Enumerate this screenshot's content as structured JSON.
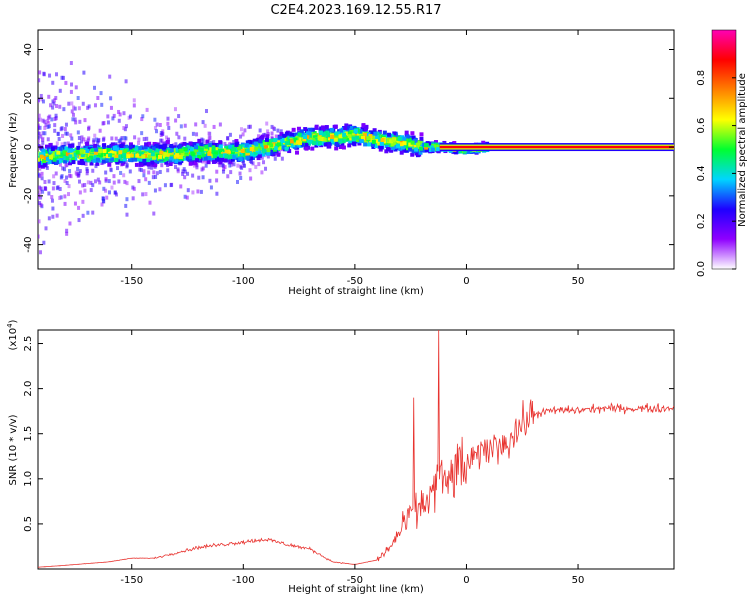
{
  "title": "C2E4.2023.169.12.55.R17",
  "chart_data": [
    {
      "type": "heatmap",
      "xlabel": "Height of straight line (km)",
      "ylabel": "Frequency (Hz)",
      "xlim": [
        -192,
        93
      ],
      "ylim": [
        -50,
        48
      ],
      "xticks": [
        -150,
        -100,
        -50,
        0,
        50
      ],
      "yticks": [
        -40,
        -20,
        0,
        20,
        40
      ],
      "colorbar": {
        "label": "Normalized spectral amplitude",
        "range": [
          0,
          1
        ],
        "ticks": [
          0.0,
          0.2,
          0.4,
          0.6,
          0.8
        ],
        "colormap": [
          "#ffffff",
          "#8f00ff",
          "#1e00ff",
          "#00d5ff",
          "#00ff30",
          "#ffff00",
          "#ff8000",
          "#ff0000",
          "#ff00b4"
        ]
      },
      "ridge": {
        "x": [
          -190,
          -180,
          -170,
          -160,
          -150,
          -140,
          -130,
          -120,
          -110,
          -100,
          -90,
          -80,
          -70,
          -60,
          -50,
          -40,
          -30,
          -20,
          -10,
          0,
          10,
          20,
          50,
          92
        ],
        "freq": [
          -4,
          -3,
          -3,
          -3,
          -3,
          -3,
          -3,
          -2,
          -2,
          -2,
          0,
          2,
          4,
          4,
          5,
          3,
          2,
          0,
          0,
          -1,
          0,
          0,
          0,
          0
        ]
      }
    },
    {
      "type": "line",
      "xlabel": "Height of straight line (km)",
      "ylabel": "SNR (10 * v/v)",
      "y_multiplier": "(x10",
      "y_multiplier_exp": "4",
      "xlim": [
        -192,
        93
      ],
      "ylim": [
        0,
        2.65
      ],
      "xticks": [
        -150,
        -100,
        -50,
        0,
        50
      ],
      "yticks": [
        0.5,
        1.0,
        1.5,
        2.0,
        2.5
      ],
      "series": [
        {
          "color": "#e8332f",
          "x": [
            -192,
            -180,
            -170,
            -160,
            -150,
            -140,
            -130,
            -120,
            -110,
            -100,
            -90,
            -80,
            -70,
            -60,
            -50,
            -40,
            -35,
            -30,
            -25,
            -20,
            -15,
            -12,
            -10,
            -5,
            0,
            5,
            10,
            15,
            20,
            25,
            30,
            40,
            50,
            60,
            70,
            80,
            90,
            93
          ],
          "values": [
            0.02,
            0.04,
            0.06,
            0.08,
            0.12,
            0.12,
            0.18,
            0.24,
            0.27,
            0.3,
            0.33,
            0.27,
            0.22,
            0.08,
            0.05,
            0.1,
            0.22,
            0.4,
            0.6,
            0.7,
            0.85,
            1.05,
            0.9,
            1.1,
            1.15,
            1.25,
            1.35,
            1.38,
            1.45,
            1.6,
            1.72,
            1.76,
            1.76,
            1.78,
            1.78,
            1.78,
            1.78,
            1.8
          ]
        }
      ]
    }
  ]
}
